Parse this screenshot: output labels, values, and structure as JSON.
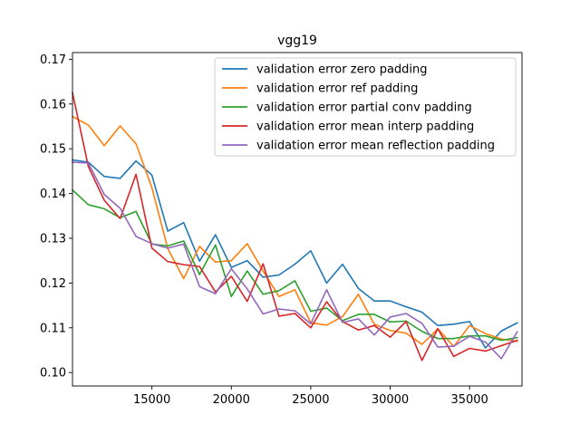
{
  "chart_data": {
    "type": "line",
    "title": "vgg19",
    "xlabel": "",
    "ylabel": "",
    "xlim": [
      10000,
      38300
    ],
    "ylim": [
      0.097,
      0.1715
    ],
    "xticks": [
      15000,
      20000,
      25000,
      30000,
      35000
    ],
    "yticks": [
      0.1,
      0.11,
      0.12,
      0.13,
      0.14,
      0.15,
      0.16,
      0.17
    ],
    "grid": false,
    "legend_position": "top-right",
    "x": [
      10000,
      11000,
      12000,
      13000,
      14000,
      15000,
      16000,
      17000,
      18000,
      19000,
      20000,
      21000,
      22000,
      23000,
      24000,
      25000,
      26000,
      27000,
      28000,
      29000,
      30000,
      31000,
      32000,
      33000,
      34000,
      35000,
      36000,
      37000,
      38000
    ],
    "series": [
      {
        "name": "validation error zero padding",
        "color": "#1f77b4",
        "values": [
          0.1475,
          0.147,
          0.1438,
          0.1434,
          0.1473,
          0.1441,
          0.1316,
          0.1335,
          0.1249,
          0.1308,
          0.1235,
          0.125,
          0.1213,
          0.1218,
          0.1242,
          0.1272,
          0.12,
          0.1242,
          0.1188,
          0.116,
          0.116,
          0.1147,
          0.1135,
          0.1105,
          0.1108,
          0.1114,
          0.1055,
          0.1093,
          0.1111
        ]
      },
      {
        "name": "validation error ref padding",
        "color": "#ff7f0e",
        "values": [
          0.1572,
          0.1553,
          0.1507,
          0.1551,
          0.1511,
          0.1413,
          0.1277,
          0.121,
          0.1282,
          0.1247,
          0.125,
          0.1288,
          0.1227,
          0.117,
          0.1185,
          0.1111,
          0.1106,
          0.1125,
          0.1175,
          0.1108,
          0.1094,
          0.1088,
          0.1063,
          0.1098,
          0.1058,
          0.1105,
          0.1087,
          0.1075,
          0.107
        ]
      },
      {
        "name": "validation error partial conv padding",
        "color": "#2ca02c",
        "values": [
          0.1408,
          0.1375,
          0.1366,
          0.1346,
          0.136,
          0.1287,
          0.1283,
          0.1294,
          0.1219,
          0.1285,
          0.117,
          0.1227,
          0.1175,
          0.1183,
          0.1205,
          0.1137,
          0.1144,
          0.1116,
          0.113,
          0.113,
          0.1113,
          0.1115,
          0.1092,
          0.1076,
          0.1076,
          0.1082,
          0.1082,
          0.1072,
          0.1078
        ]
      },
      {
        "name": "validation error mean interp padding",
        "color": "#d62728",
        "values": [
          0.1625,
          0.146,
          0.1385,
          0.1344,
          0.1443,
          0.1278,
          0.1248,
          0.1241,
          0.1237,
          0.118,
          0.1215,
          0.1159,
          0.1243,
          0.1126,
          0.1132,
          0.11,
          0.1158,
          0.1114,
          0.1095,
          0.1105,
          0.1079,
          0.1114,
          0.1027,
          0.1098,
          0.1036,
          0.1054,
          0.1048,
          0.106,
          0.1072
        ]
      },
      {
        "name": "validation error mean reflection padding",
        "color": "#9467bd",
        "values": [
          0.147,
          0.1468,
          0.1398,
          0.1367,
          0.1304,
          0.1288,
          0.1278,
          0.1287,
          0.1192,
          0.1176,
          0.1232,
          0.1187,
          0.1131,
          0.1142,
          0.1138,
          0.1109,
          0.1185,
          0.1112,
          0.112,
          0.1084,
          0.1124,
          0.1132,
          0.111,
          0.1057,
          0.1059,
          0.1081,
          0.1068,
          0.1031,
          0.1091
        ]
      }
    ]
  }
}
